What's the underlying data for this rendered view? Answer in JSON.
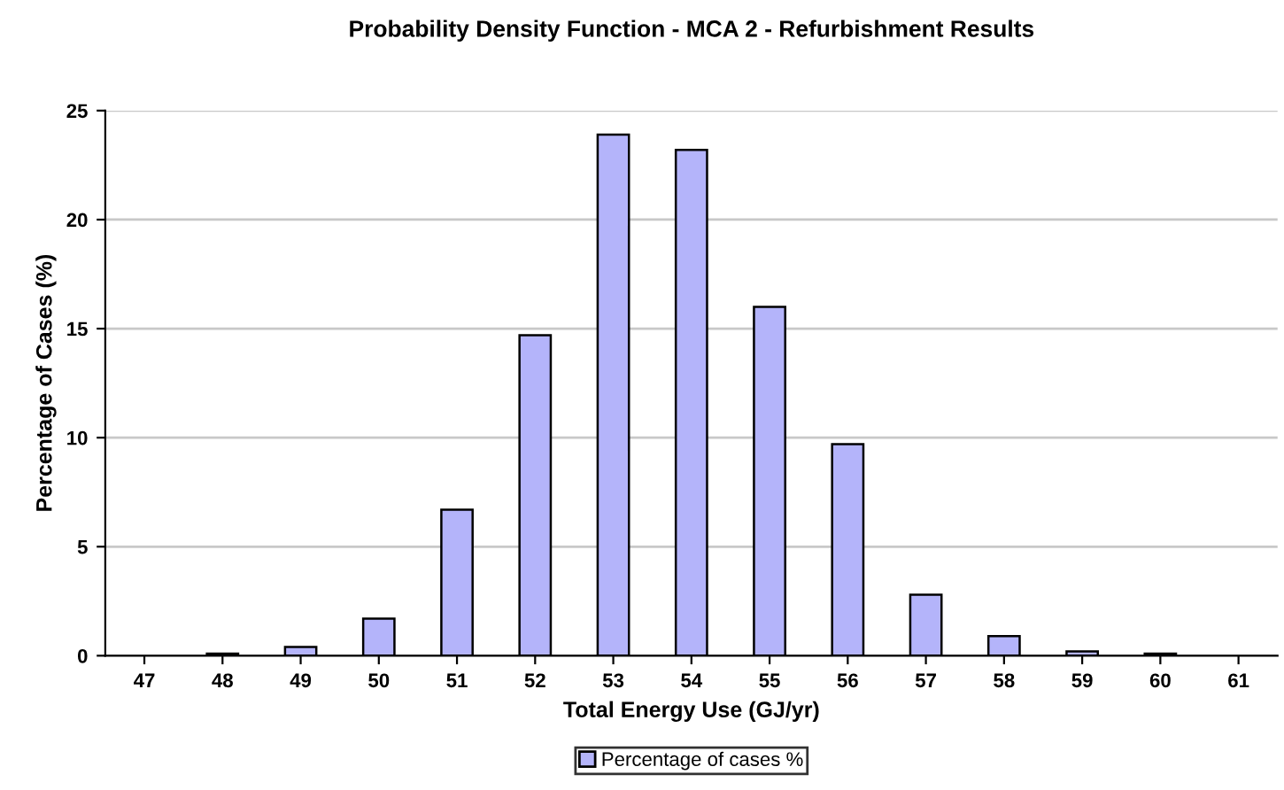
{
  "chart_data": {
    "type": "bar",
    "title": "Probability Density Function - MCA 2 - Refurbishment Results",
    "xlabel": "Total Energy Use (GJ/yr)",
    "ylabel": "Percentage of Cases (%)",
    "categories": [
      "47",
      "48",
      "49",
      "50",
      "51",
      "52",
      "53",
      "54",
      "55",
      "56",
      "57",
      "58",
      "59",
      "60",
      "61"
    ],
    "series": [
      {
        "name": "Percentage of cases %",
        "color": "#b4b4fa",
        "values": [
          0,
          0.1,
          0.4,
          1.7,
          6.7,
          14.7,
          23.9,
          23.2,
          16.0,
          9.7,
          2.8,
          0.9,
          0.2,
          0.1,
          0
        ]
      }
    ],
    "ylim": [
      0,
      25
    ],
    "yticks": [
      0,
      5,
      10,
      15,
      20,
      25
    ],
    "grid": "y",
    "legend": "bottom"
  }
}
